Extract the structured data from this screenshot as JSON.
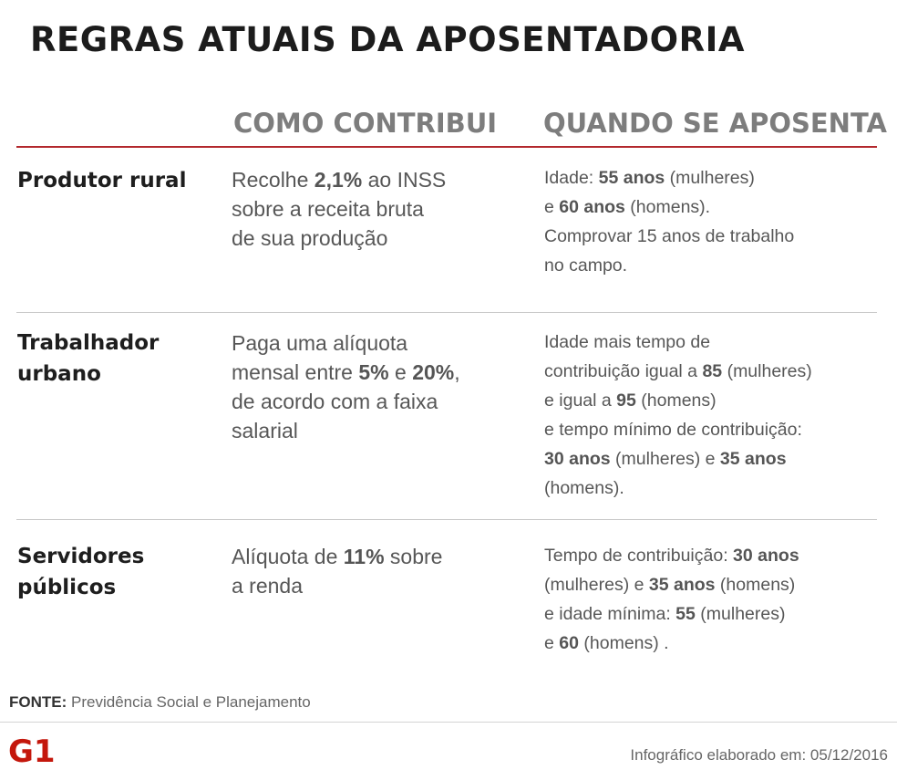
{
  "title": "REGRAS ATUAIS DA APOSENTADORIA",
  "headers": {
    "contribution": "COMO CONTRIBUI",
    "retirement": "QUANDO SE APOSENTA"
  },
  "rows": [
    {
      "label": [
        "Produtor rural"
      ],
      "contribution": [
        [
          {
            "t": "Recolhe "
          },
          {
            "t": "2,1%",
            "b": true
          },
          {
            "t": " ao INSS"
          }
        ],
        [
          {
            "t": "sobre a receita bruta"
          }
        ],
        [
          {
            "t": "de sua produção"
          }
        ]
      ],
      "retirement": [
        [
          {
            "t": "Idade: "
          },
          {
            "t": "55 anos",
            "b": true
          },
          {
            "t": " (mulheres)"
          }
        ],
        [
          {
            "t": "e "
          },
          {
            "t": "60 anos",
            "b": true
          },
          {
            "t": " (homens)."
          }
        ],
        [
          {
            "t": "Comprovar 15 anos de trabalho"
          }
        ],
        [
          {
            "t": "no campo."
          }
        ]
      ]
    },
    {
      "label": [
        "Trabalhador",
        "urbano"
      ],
      "contribution": [
        [
          {
            "t": "Paga uma alíquota"
          }
        ],
        [
          {
            "t": "mensal entre "
          },
          {
            "t": "5%",
            "b": true
          },
          {
            "t": " e "
          },
          {
            "t": "20%",
            "b": true
          },
          {
            "t": ","
          }
        ],
        [
          {
            "t": "de acordo com a faixa"
          }
        ],
        [
          {
            "t": "salarial"
          }
        ]
      ],
      "retirement": [
        [
          {
            "t": "Idade mais tempo de"
          }
        ],
        [
          {
            "t": "contribuição igual a "
          },
          {
            "t": "85",
            "b": true
          },
          {
            "t": " (mulheres)"
          }
        ],
        [
          {
            "t": "e igual a "
          },
          {
            "t": "95",
            "b": true
          },
          {
            "t": " (homens)"
          }
        ],
        [
          {
            "t": "e tempo mínimo de contribuição:"
          }
        ],
        [
          {
            "t": "30 anos",
            "b": true
          },
          {
            "t": " (mulheres) e "
          },
          {
            "t": "35 anos",
            "b": true
          }
        ],
        [
          {
            "t": "(homens)."
          }
        ]
      ]
    },
    {
      "label": [
        "Servidores",
        "públicos"
      ],
      "contribution": [
        [
          {
            "t": "Alíquota de "
          },
          {
            "t": "11%",
            "b": true
          },
          {
            "t": " sobre"
          }
        ],
        [
          {
            "t": "a renda"
          }
        ]
      ],
      "retirement": [
        [
          {
            "t": "Tempo de contribuição: "
          },
          {
            "t": "30 anos",
            "b": true
          }
        ],
        [
          {
            "t": "(mulheres) e "
          },
          {
            "t": "35 anos",
            "b": true
          },
          {
            "t": "  (homens)"
          }
        ],
        [
          {
            "t": "e idade mínima: "
          },
          {
            "t": "55",
            "b": true
          },
          {
            "t": " (mulheres)"
          }
        ],
        [
          {
            "t": "e "
          },
          {
            "t": "60",
            "b": true
          },
          {
            "t": " (homens) ."
          }
        ]
      ]
    }
  ],
  "footer": {
    "source_label": "FONTE:",
    "source_text": " Previdência Social e Planejamento",
    "logo_text": "G1",
    "credit": "Infográfico elaborado em: 05/12/2016"
  },
  "colors": {
    "accent_red": "#b3282d",
    "logo_red": "#c4170c",
    "title": "#1c1c1c",
    "header_gray": "#7d7d7d"
  }
}
